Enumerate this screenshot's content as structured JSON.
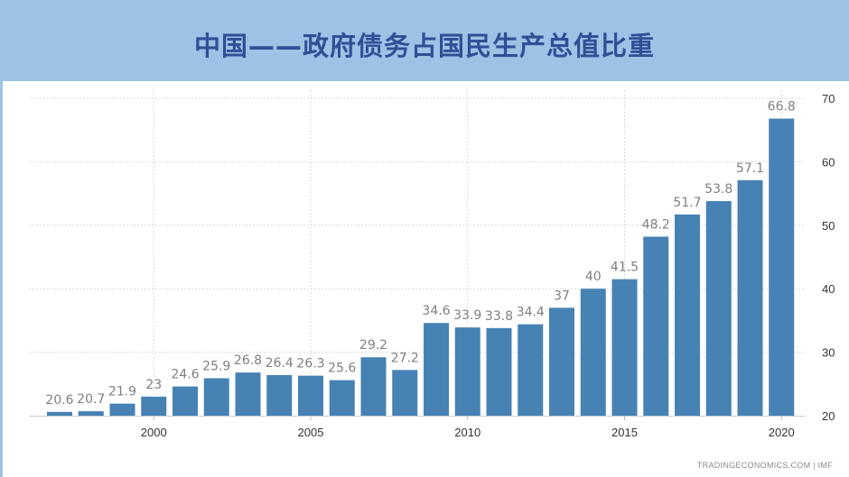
{
  "header": {
    "title": "中国——政府债务占国民生产总值比重"
  },
  "source": "TRADINGECONOMICS.COM  |  IMF",
  "colors": {
    "header_bg": "#9cc2e5",
    "title": "#2f4f96",
    "bar": "#4682b4",
    "label": "#7f7f7f",
    "grid": "#d9d9d9"
  },
  "chart_data": {
    "type": "bar",
    "title": "",
    "xlabel": "",
    "ylabel": "",
    "x": [
      1997,
      1998,
      1999,
      2000,
      2001,
      2002,
      2003,
      2004,
      2005,
      2006,
      2007,
      2008,
      2009,
      2010,
      2011,
      2012,
      2013,
      2014,
      2015,
      2016,
      2017,
      2018,
      2019,
      2020
    ],
    "values": [
      20.6,
      20.7,
      21.9,
      23,
      24.6,
      25.9,
      26.8,
      26.4,
      26.3,
      25.6,
      29.2,
      27.2,
      34.6,
      33.9,
      33.8,
      34.4,
      37,
      40,
      41.5,
      48.2,
      51.7,
      53.8,
      57.1,
      66.8
    ],
    "x_ticks": [
      "2000",
      "2005",
      "2010",
      "2015",
      "2020"
    ],
    "y_ticks": [
      "20",
      "30",
      "40",
      "50",
      "60",
      "70"
    ],
    "ylim": [
      20,
      70
    ],
    "y_axis_position": "right",
    "grid": true,
    "data_labels": true
  }
}
